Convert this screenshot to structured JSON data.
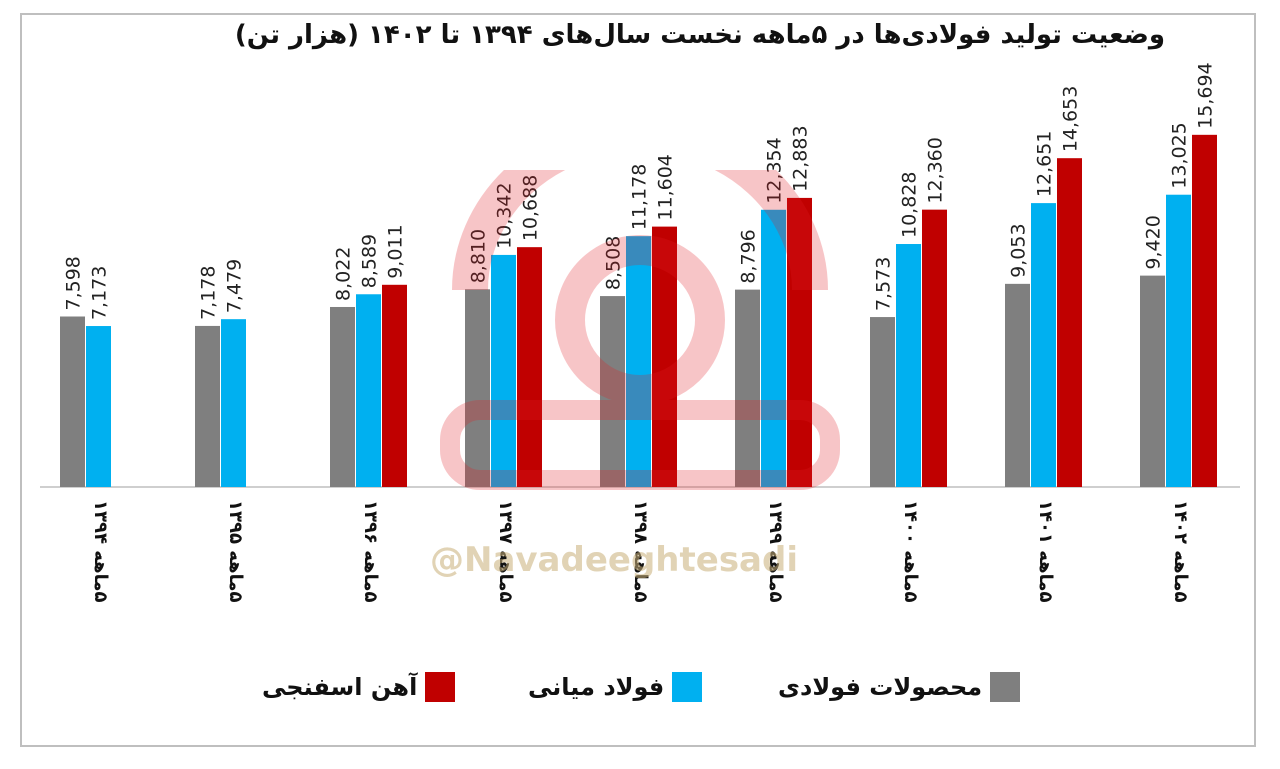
{
  "chart_data": {
    "type": "bar",
    "title": "وضعیت تولید فولادی‌ها در ۵ماهه نخست سال‌های ۱۳۹۴ تا ۱۴۰۲ (هزار تن)",
    "categories": [
      "۵ماهه ۱۳۹۴",
      "۵ماهه ۱۳۹۵",
      "۵ماهه ۱۳۹۶",
      "۵ماهه ۱۳۹۷",
      "۵ماهه ۱۳۹۸",
      "۵ماهه ۱۳۹۹",
      "۵ماهه ۱۴۰۰",
      "۵ماهه ۱۴۰۱",
      "۵ماهه ۱۴۰۲"
    ],
    "series": [
      {
        "name": "محصولات فولادی",
        "color": "#7f7f7f",
        "values": [
          7598,
          7178,
          8022,
          8810,
          8508,
          8796,
          7573,
          9053,
          9420
        ]
      },
      {
        "name": "فولاد میانی",
        "color": "#00b0f0",
        "values": [
          7173,
          7479,
          8589,
          10342,
          11178,
          12354,
          10828,
          12651,
          13025
        ]
      },
      {
        "name": "آهن اسفنجی",
        "color": "#c00000",
        "values": [
          null,
          null,
          9011,
          10688,
          11604,
          12883,
          12360,
          14653,
          15694
        ]
      }
    ],
    "value_labels": [
      [
        "7,598",
        "7,178",
        "8,022",
        "8,810",
        "8,508",
        "8,796",
        "7,573",
        "9,053",
        "9,420"
      ],
      [
        "7,173",
        "7,479",
        "8,589",
        "10,342",
        "11,178",
        "12,354",
        "10,828",
        "12,651",
        "13,025"
      ],
      [
        "",
        "",
        "9,011",
        "10,688",
        "11,604",
        "12,883",
        "12,360",
        "14,653",
        "15,694"
      ]
    ],
    "xlabel": "",
    "ylabel": "",
    "legend_position": "bottom",
    "grid": false
  },
  "watermark": {
    "handle": "@Navadeeghtesadi",
    "brand_color": "#e31e24"
  }
}
